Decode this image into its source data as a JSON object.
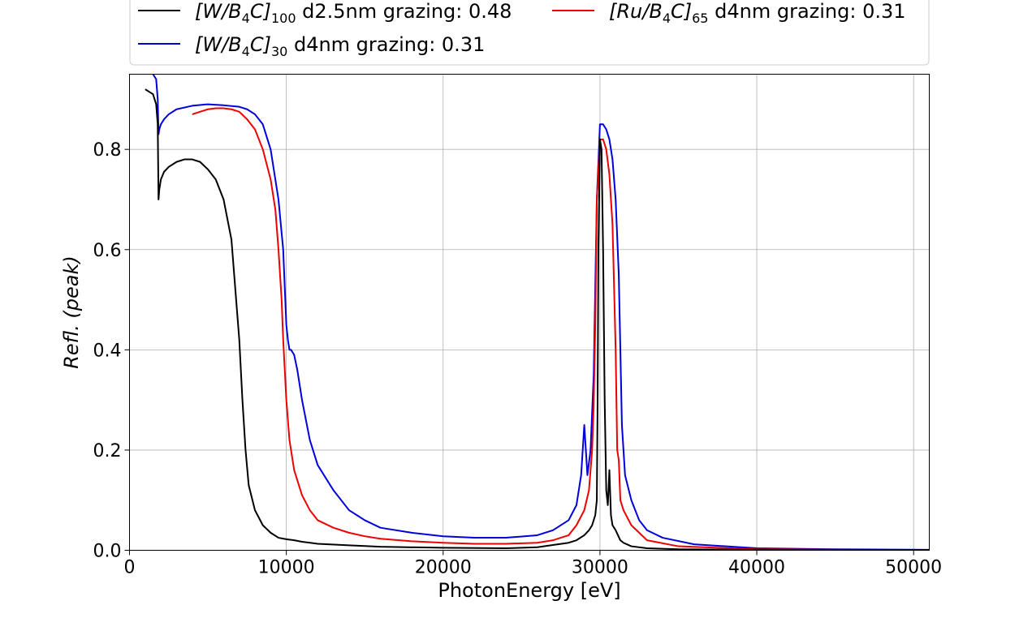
{
  "chart_data": {
    "type": "line",
    "xlabel": "PhotonEnergy [eV]",
    "ylabel": "Refl. (peak)",
    "xlim": [
      0,
      51000
    ],
    "ylim": [
      0,
      0.95
    ],
    "xticks": [
      0,
      10000,
      20000,
      30000,
      40000,
      50000
    ],
    "xtick_labels": [
      "0",
      "10000",
      "20000",
      "30000",
      "40000",
      "50000"
    ],
    "yticks": [
      0,
      0.2,
      0.4,
      0.6,
      0.8
    ],
    "ytick_labels": [
      "0.0",
      "0.2",
      "0.4",
      "0.6",
      "0.8"
    ],
    "grid": true,
    "legend_placement": "top, above plot, 2 columns",
    "series": [
      {
        "name_main": "[W/B",
        "name_sub1": "4",
        "name_mid": "C]",
        "name_sub2": "100",
        "name_tail": " d2.5nm grazing: 0.48",
        "color": "#000000",
        "x": [
          1000,
          1500,
          1700,
          1800,
          1850,
          1900,
          2000,
          2200,
          2500,
          3000,
          3500,
          4000,
          4500,
          5000,
          5500,
          6000,
          6500,
          6800,
          7000,
          7200,
          7400,
          7600,
          8000,
          8500,
          9000,
          9500,
          10000,
          10500,
          11000,
          12000,
          14000,
          16000,
          20000,
          24000,
          26000,
          28000,
          28500,
          29000,
          29300,
          29500,
          29700,
          29800,
          29850,
          29900,
          30000,
          30100,
          30200,
          30300,
          30400,
          30500,
          30600,
          30700,
          30800,
          31000,
          31300,
          31500,
          32000,
          33000,
          35000,
          40000,
          45000,
          51000
        ],
        "y": [
          0.92,
          0.91,
          0.89,
          0.85,
          0.7,
          0.72,
          0.74,
          0.755,
          0.765,
          0.775,
          0.78,
          0.78,
          0.775,
          0.76,
          0.74,
          0.7,
          0.62,
          0.5,
          0.42,
          0.3,
          0.2,
          0.13,
          0.08,
          0.05,
          0.035,
          0.025,
          0.022,
          0.02,
          0.017,
          0.013,
          0.01,
          0.007,
          0.005,
          0.004,
          0.006,
          0.015,
          0.02,
          0.03,
          0.04,
          0.05,
          0.07,
          0.1,
          0.3,
          0.6,
          0.82,
          0.8,
          0.6,
          0.3,
          0.12,
          0.09,
          0.16,
          0.07,
          0.05,
          0.04,
          0.02,
          0.015,
          0.008,
          0.004,
          0.002,
          0.001,
          0.0005,
          0.0003
        ]
      },
      {
        "name_main": "[W/B",
        "name_sub1": "4",
        "name_mid": "C]",
        "name_sub2": "30",
        "name_tail": " d4nm grazing: 0.31",
        "color": "#0000dd",
        "x": [
          1500,
          1700,
          1800,
          1850,
          1900,
          2000,
          2200,
          2500,
          3000,
          4000,
          5000,
          6000,
          7000,
          7500,
          8000,
          8500,
          9000,
          9500,
          9800,
          10000,
          10100,
          10200,
          10300,
          10500,
          10700,
          11000,
          11500,
          12000,
          13000,
          14000,
          15000,
          16000,
          18000,
          20000,
          22000,
          24000,
          26000,
          27000,
          28000,
          28500,
          28800,
          29000,
          29200,
          29400,
          29600,
          29800,
          30000,
          30200,
          30400,
          30600,
          30800,
          31000,
          31200,
          31400,
          31600,
          32000,
          32500,
          33000,
          34000,
          36000,
          40000,
          45000,
          51000
        ],
        "y": [
          0.95,
          0.94,
          0.9,
          0.83,
          0.84,
          0.85,
          0.86,
          0.87,
          0.88,
          0.887,
          0.89,
          0.888,
          0.885,
          0.88,
          0.87,
          0.85,
          0.8,
          0.7,
          0.6,
          0.45,
          0.42,
          0.4,
          0.4,
          0.39,
          0.36,
          0.3,
          0.22,
          0.17,
          0.12,
          0.08,
          0.06,
          0.045,
          0.035,
          0.028,
          0.025,
          0.025,
          0.03,
          0.04,
          0.06,
          0.09,
          0.15,
          0.25,
          0.15,
          0.2,
          0.35,
          0.7,
          0.85,
          0.85,
          0.84,
          0.82,
          0.78,
          0.7,
          0.55,
          0.25,
          0.15,
          0.1,
          0.06,
          0.04,
          0.025,
          0.012,
          0.004,
          0.002,
          0.001
        ]
      },
      {
        "name_main": "[Ru/B",
        "name_sub1": "4",
        "name_mid": "C]",
        "name_sub2": "65",
        "name_tail": " d4nm grazing: 0.31",
        "color": "#ee0000",
        "x": [
          4000,
          4500,
          5000,
          5500,
          6000,
          6500,
          7000,
          7500,
          8000,
          8500,
          9000,
          9300,
          9500,
          9700,
          9800,
          9900,
          10000,
          10200,
          10500,
          11000,
          11500,
          12000,
          13000,
          14000,
          15000,
          16000,
          18000,
          20000,
          22000,
          24000,
          26000,
          27000,
          28000,
          28500,
          29000,
          29300,
          29500,
          29600,
          29700,
          29800,
          30000,
          30200,
          30400,
          30600,
          30800,
          31000,
          31100,
          31200,
          31300,
          31500,
          32000,
          33000,
          35000,
          40000,
          45000,
          51000
        ],
        "y": [
          0.87,
          0.875,
          0.88,
          0.882,
          0.882,
          0.88,
          0.875,
          0.86,
          0.84,
          0.8,
          0.74,
          0.68,
          0.6,
          0.5,
          0.42,
          0.36,
          0.3,
          0.22,
          0.16,
          0.11,
          0.08,
          0.06,
          0.045,
          0.035,
          0.028,
          0.023,
          0.018,
          0.015,
          0.013,
          0.013,
          0.015,
          0.02,
          0.03,
          0.05,
          0.08,
          0.12,
          0.2,
          0.29,
          0.45,
          0.7,
          0.82,
          0.82,
          0.8,
          0.75,
          0.65,
          0.4,
          0.2,
          0.18,
          0.1,
          0.08,
          0.05,
          0.02,
          0.008,
          0.002,
          0.001,
          0.0005
        ]
      }
    ]
  }
}
